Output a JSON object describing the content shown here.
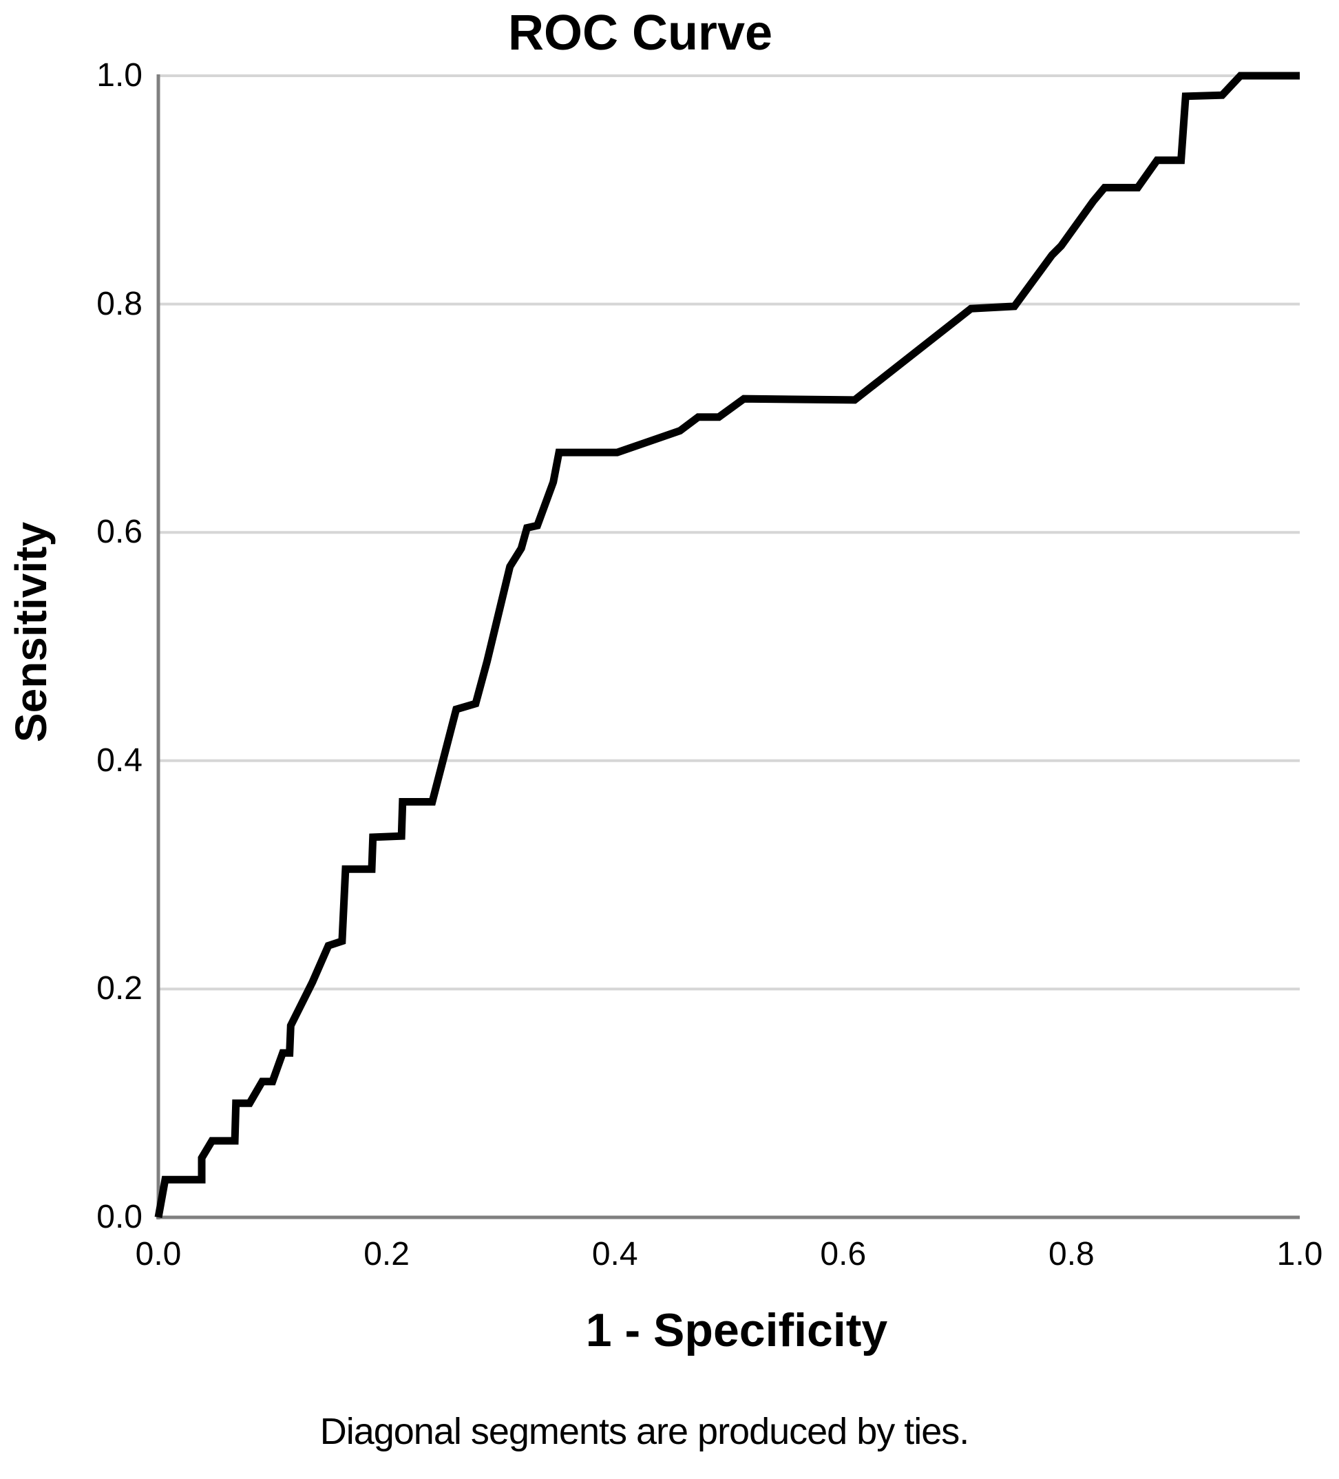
{
  "page": {
    "background": "#ffffff"
  },
  "chart_data": {
    "type": "line",
    "title": "ROC Curve",
    "xlabel": "1 - Specificity",
    "ylabel": "Sensitivity",
    "footnote": "Diagonal segments are produced by ties.",
    "xlim": [
      0,
      1
    ],
    "ylim": [
      0,
      1
    ],
    "x_ticks": [
      "0.0",
      "0.2",
      "0.4",
      "0.6",
      "0.8",
      "1.0"
    ],
    "y_ticks": [
      "0.0",
      "0.2",
      "0.4",
      "0.6",
      "0.8",
      "1.0"
    ],
    "grid": "horizontal",
    "legend": "none",
    "colors": {
      "curve": "#000000",
      "gridline": "#d6d6d6",
      "axis": "#808080",
      "text": "#000000",
      "background": "#ffffff"
    },
    "series": [
      {
        "name": "ROC curve",
        "points": [
          [
            0.0,
            0.0
          ],
          [
            0.006,
            0.033
          ],
          [
            0.038,
            0.033
          ],
          [
            0.038,
            0.052
          ],
          [
            0.047,
            0.067
          ],
          [
            0.067,
            0.067
          ],
          [
            0.068,
            0.1
          ],
          [
            0.08,
            0.1
          ],
          [
            0.091,
            0.119
          ],
          [
            0.1,
            0.119
          ],
          [
            0.109,
            0.144
          ],
          [
            0.115,
            0.144
          ],
          [
            0.116,
            0.168
          ],
          [
            0.135,
            0.206
          ],
          [
            0.149,
            0.238
          ],
          [
            0.161,
            0.242
          ],
          [
            0.164,
            0.305
          ],
          [
            0.187,
            0.305
          ],
          [
            0.188,
            0.333
          ],
          [
            0.213,
            0.334
          ],
          [
            0.214,
            0.364
          ],
          [
            0.24,
            0.364
          ],
          [
            0.261,
            0.445
          ],
          [
            0.278,
            0.45
          ],
          [
            0.288,
            0.487
          ],
          [
            0.308,
            0.57
          ],
          [
            0.318,
            0.586
          ],
          [
            0.323,
            0.604
          ],
          [
            0.332,
            0.606
          ],
          [
            0.346,
            0.644
          ],
          [
            0.351,
            0.67
          ],
          [
            0.402,
            0.67
          ],
          [
            0.457,
            0.689
          ],
          [
            0.473,
            0.701
          ],
          [
            0.491,
            0.701
          ],
          [
            0.513,
            0.717
          ],
          [
            0.61,
            0.716
          ],
          [
            0.712,
            0.796
          ],
          [
            0.75,
            0.798
          ],
          [
            0.783,
            0.843
          ],
          [
            0.791,
            0.851
          ],
          [
            0.819,
            0.89
          ],
          [
            0.829,
            0.902
          ],
          [
            0.858,
            0.902
          ],
          [
            0.875,
            0.926
          ],
          [
            0.896,
            0.926
          ],
          [
            0.9,
            0.982
          ],
          [
            0.932,
            0.983
          ],
          [
            0.948,
            1.0
          ],
          [
            1.0,
            1.0
          ]
        ]
      }
    ]
  }
}
